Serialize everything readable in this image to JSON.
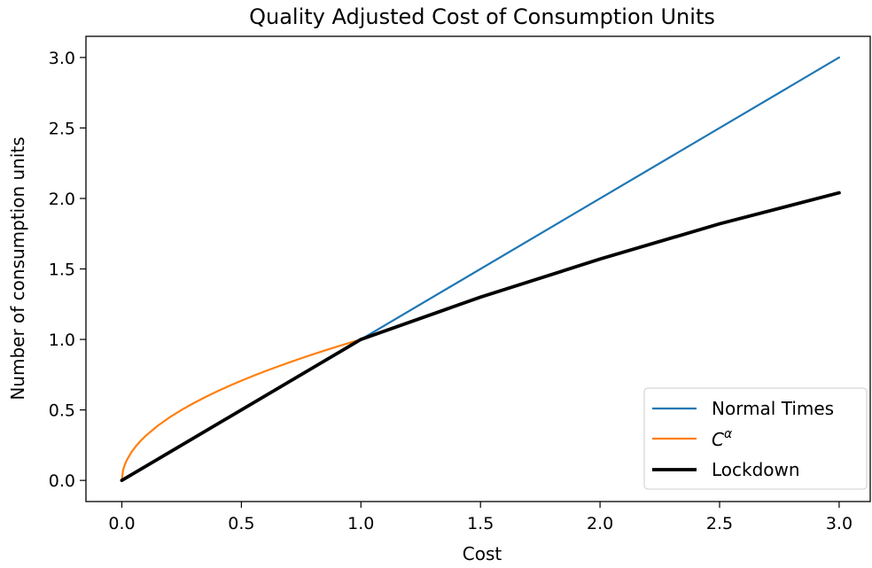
{
  "chart_data": {
    "type": "line",
    "title": "Quality Adjusted Cost of Consumption Units",
    "xlabel": "Cost",
    "ylabel": "Number of consumption units",
    "xlim": [
      -0.15,
      3.13
    ],
    "ylim": [
      -0.15,
      3.15
    ],
    "xticks": [
      0.0,
      0.5,
      1.0,
      1.5,
      2.0,
      2.5,
      3.0
    ],
    "xtick_labels": [
      "0.0",
      "0.5",
      "1.0",
      "1.5",
      "2.0",
      "2.5",
      "3.0"
    ],
    "yticks": [
      0.0,
      0.5,
      1.0,
      1.5,
      2.0,
      2.5,
      3.0
    ],
    "ytick_labels": [
      "0.0",
      "0.5",
      "1.0",
      "1.5",
      "2.0",
      "2.5",
      "3.0"
    ],
    "grid": false,
    "legend_position": "lower-right",
    "series": [
      {
        "name": "Normal Times",
        "color": "#1f77b4",
        "width": 2.2,
        "x": [
          0.0,
          3.0
        ],
        "y": [
          0.0,
          3.0
        ]
      },
      {
        "name": "C",
        "name_superscript": "α",
        "color": "#ff7f0e",
        "width": 2.2,
        "x": [
          0.0,
          0.005,
          0.01,
          0.02,
          0.04,
          0.06,
          0.08,
          0.1,
          0.15,
          0.2,
          0.25,
          0.3,
          0.35,
          0.4,
          0.45,
          0.5,
          0.55,
          0.6,
          0.65,
          0.7,
          0.75,
          0.8,
          0.85,
          0.9,
          0.95,
          1.0
        ],
        "y": [
          0.0,
          0.028,
          0.046,
          0.076,
          0.126,
          0.168,
          0.206,
          0.242,
          0.322,
          0.393,
          0.459,
          0.521,
          0.579,
          0.635,
          0.688,
          0.739,
          0.788,
          0.835,
          0.881,
          0.925,
          0.968,
          1.011,
          1.052,
          1.092,
          1.132,
          1.0
        ],
        "note_free": ""
      },
      {
        "name": "Lockdown",
        "color": "#000000",
        "width": 3.8,
        "x": [
          0.0,
          1.0,
          1.5,
          2.0,
          2.5,
          3.0
        ],
        "y": [
          0.0,
          1.0,
          1.3,
          1.57,
          1.82,
          2.04
        ]
      }
    ]
  }
}
